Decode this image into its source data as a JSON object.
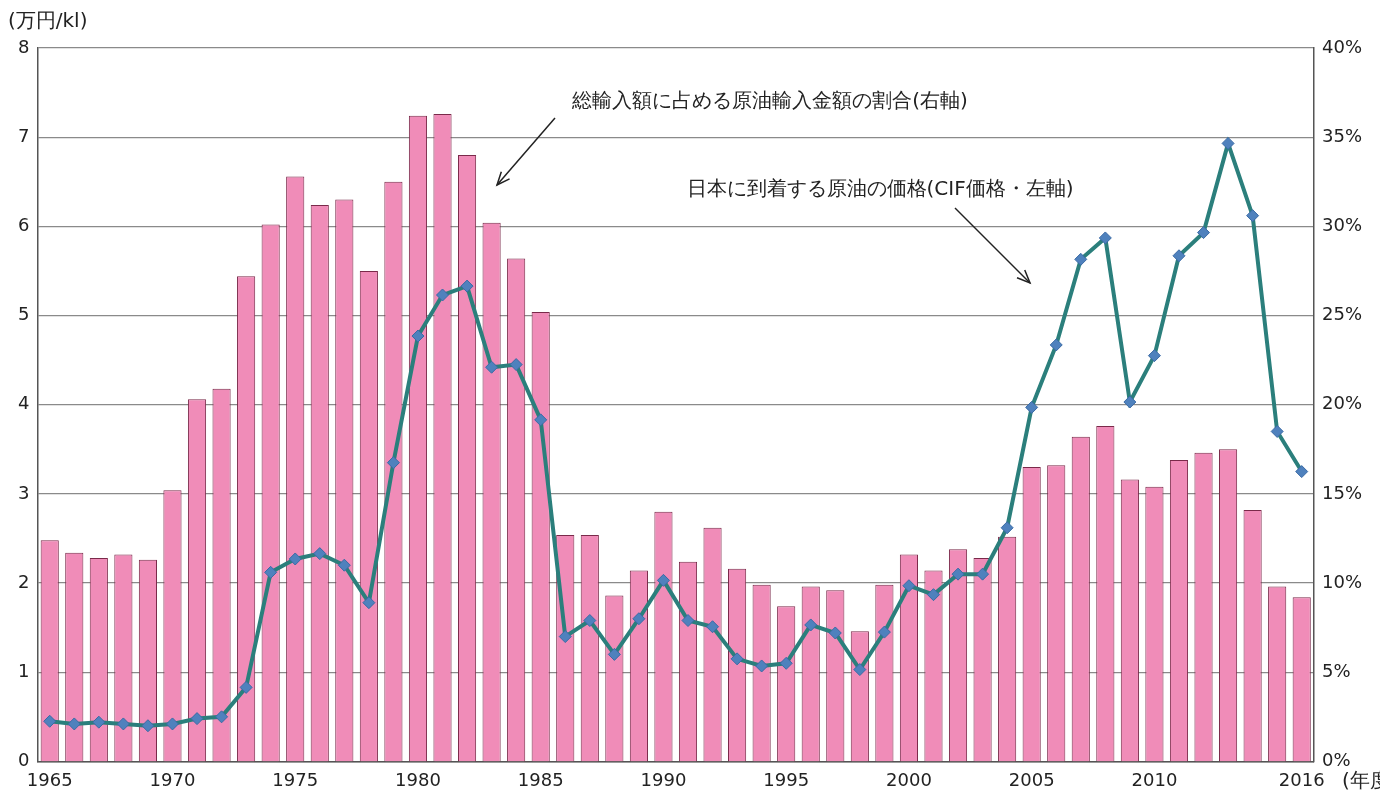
{
  "chart_data": {
    "type": "bar",
    "y_label": "(万円/kl)",
    "x_label": "(年度)",
    "categories": [
      1965,
      null,
      null,
      null,
      null,
      1970,
      null,
      null,
      null,
      null,
      1975,
      null,
      null,
      null,
      null,
      1980,
      null,
      null,
      null,
      null,
      1985,
      null,
      null,
      null,
      null,
      1990,
      null,
      null,
      null,
      null,
      1995,
      null,
      null,
      null,
      null,
      2000,
      null,
      null,
      null,
      null,
      2005,
      null,
      null,
      null,
      null,
      2010,
      null,
      null,
      null,
      null,
      null,
      2016
    ],
    "series": [
      {
        "name": "総輸入額に占める原油輸入金額の割合(右軸)",
        "type": "bar",
        "axis": "y2",
        "color": "#f08cb8",
        "values": [
          12.4,
          11.7,
          11.4,
          11.6,
          11.3,
          15.2,
          20.3,
          20.9,
          27.2,
          30.1,
          32.8,
          31.2,
          31.5,
          27.5,
          32.5,
          36.2,
          36.3,
          34.0,
          30.2,
          28.2,
          25.2,
          12.7,
          12.7,
          9.3,
          10.7,
          14.0,
          11.2,
          13.1,
          10.8,
          9.9,
          8.7,
          9.8,
          9.6,
          7.3,
          9.9,
          11.6,
          10.7,
          11.9,
          11.4,
          12.6,
          16.5,
          16.6,
          18.2,
          18.8,
          15.8,
          15.4,
          16.9,
          17.3,
          17.5,
          14.1,
          9.8,
          9.2
        ]
      },
      {
        "name": "日本に到着する原油の価格(CIF価格・左軸)",
        "type": "line",
        "axis": "y",
        "color": "#2b7f7c",
        "marker": "diamond",
        "values": [
          0.45,
          0.42,
          0.44,
          0.42,
          0.4,
          0.42,
          0.48,
          0.5,
          0.83,
          2.12,
          2.27,
          2.33,
          2.2,
          1.78,
          3.35,
          4.77,
          5.23,
          5.33,
          4.42,
          4.45,
          3.83,
          1.4,
          1.58,
          1.2,
          1.6,
          2.03,
          1.58,
          1.51,
          1.15,
          1.07,
          1.1,
          1.53,
          1.44,
          1.03,
          1.45,
          1.97,
          1.87,
          2.1,
          2.1,
          2.62,
          3.97,
          4.67,
          5.63,
          5.87,
          4.03,
          4.55,
          5.67,
          5.93,
          6.93,
          6.12,
          3.7,
          3.25
        ]
      }
    ],
    "ylim": [
      0,
      8
    ],
    "yticks": [
      0,
      1,
      2,
      3,
      4,
      5,
      6,
      7,
      8
    ],
    "y2lim": [
      0,
      40
    ],
    "y2ticks": [
      {
        "value": 0,
        "label": "0%"
      },
      {
        "value": 5,
        "label": "5%"
      },
      {
        "value": 10,
        "label": "10%"
      },
      {
        "value": 15,
        "label": "15%"
      },
      {
        "value": 20,
        "label": "20%"
      },
      {
        "value": 25,
        "label": "25%"
      },
      {
        "value": 30,
        "label": "30%"
      },
      {
        "value": 35,
        "label": "35%"
      },
      {
        "value": 40,
        "label": "40%"
      }
    ],
    "grid": true
  }
}
